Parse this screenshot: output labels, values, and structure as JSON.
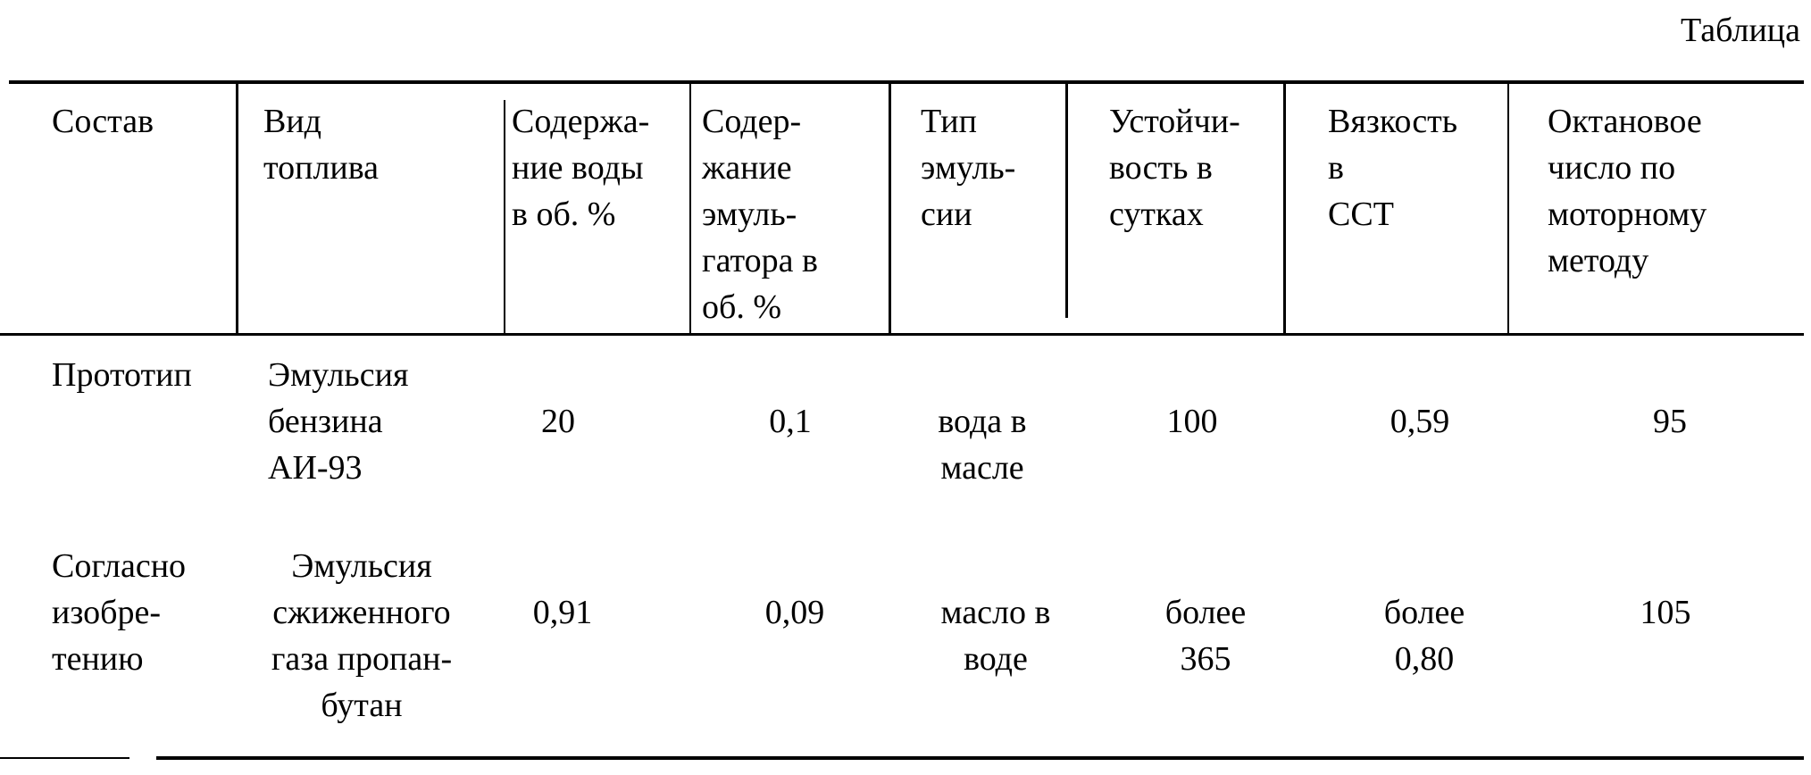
{
  "caption": "Таблица",
  "table": {
    "headers": [
      "Состав",
      "Вид\nтоплива",
      "Содержа-\nние воды\nв  об. %",
      "Содер-\nжание\nэмуль-\nгатора в\nоб. %",
      "Тип\nэмуль-\nсии",
      "Устойчи-\nвость в\nсутках",
      "Вязкость\nв\nССТ",
      "Октановое\nчисло по\nмоторному\nметоду"
    ],
    "rows": [
      [
        "Прототип",
        "Эмульсия\nбензина\nАИ-93",
        "20",
        "0,1",
        "вода в\nмасле",
        "100",
        "0,59",
        "95"
      ],
      [
        "Согласно\nизобре-\nтению",
        "Эмульсия\nсжиженного\nгаза пропан-\nбутан",
        "0,91",
        "0,09",
        "масло в\nводе",
        "более\n365",
        "более\n0,80",
        "105"
      ]
    ]
  }
}
